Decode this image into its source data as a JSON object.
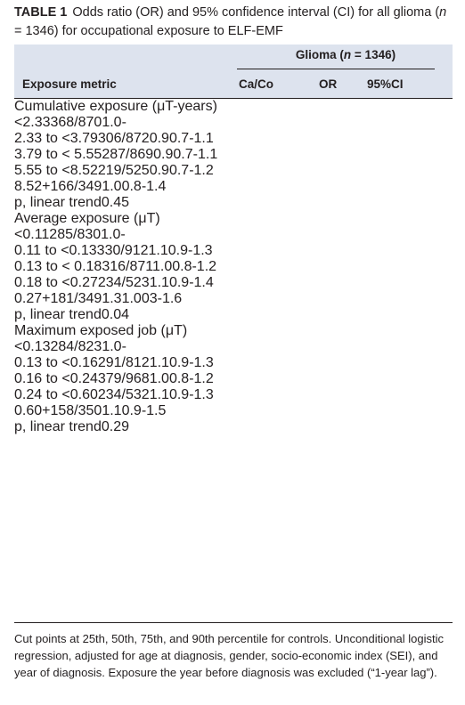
{
  "title": {
    "label": "TABLE 1",
    "segments": [
      {
        "text": "Odds ratio (OR) and 95% confidence interval (CI) for all glioma ("
      },
      {
        "text": "n",
        "italic": true
      },
      {
        "text": " = 1346) for occupational exposure to ELF-EMF"
      }
    ]
  },
  "table": {
    "group_header": [
      {
        "text": "Glioma ("
      },
      {
        "text": "n",
        "italic": true
      },
      {
        "text": " = 1346)"
      }
    ],
    "columns": [
      "Exposure metric",
      "Ca/Co",
      "OR",
      "95%CI"
    ],
    "sections": [
      {
        "title": "Cumulative exposure (μT-years)",
        "rows": [
          {
            "metric": "<2.33",
            "caco": "368/870",
            "or": "1.0",
            "ci": "-"
          },
          {
            "metric": "2.33 to <3.79",
            "caco": "306/872",
            "or": "0.9",
            "ci": "0.7-1.1"
          },
          {
            "metric": "3.79 to < 5.55",
            "caco": "287/869",
            "or": "0.9",
            "ci": "0.7-1.1"
          },
          {
            "metric": "5.55 to <8.52",
            "caco": "219/525",
            "or": "0.9",
            "ci": "0.7-1.2"
          },
          {
            "metric": "8.52+",
            "caco": "166/349",
            "or": "1.0",
            "ci": "0.8-1.4"
          },
          {
            "metric": "p, linear trend",
            "ci": "0.45"
          }
        ]
      },
      {
        "title": "Average exposure (μT)",
        "rows": [
          {
            "metric": "<0.11",
            "caco": "285/830",
            "or": "1.0",
            "ci": "-"
          },
          {
            "metric": "0.11 to <0.13",
            "caco": "330/912",
            "or": "1.1",
            "ci": "0.9-1.3"
          },
          {
            "metric": "0.13 to < 0.18",
            "caco": "316/871",
            "or": "1.0",
            "ci": "0.8-1.2"
          },
          {
            "metric": "0.18 to <0.27",
            "caco": "234/523",
            "or": "1.1",
            "ci": "0.9-1.4"
          },
          {
            "metric": "0.27+",
            "caco": "181/349",
            "or": "1.3",
            "ci": "1.003-1.6"
          },
          {
            "metric": "p, linear trend",
            "ci": "0.04"
          }
        ]
      },
      {
        "title": "Maximum exposed job (μT)",
        "rows": [
          {
            "metric": "<0.13",
            "caco": "284/823",
            "or": "1.0",
            "ci": "-"
          },
          {
            "metric": "0.13 to <0.16",
            "caco": "291/812",
            "or": "1.1",
            "ci": "0.9-1.3"
          },
          {
            "metric": "0.16 to <0.24",
            "caco": "379/968",
            "or": "1.0",
            "ci": "0.8-1.2"
          },
          {
            "metric": "0.24 to <0.60",
            "caco": "234/532",
            "or": "1.1",
            "ci": "0.9-1.3"
          },
          {
            "metric": "0.60+",
            "caco": "158/350",
            "or": "1.1",
            "ci": "0.9-1.5"
          },
          {
            "metric": "p, linear trend",
            "ci": "0.29"
          }
        ]
      }
    ]
  },
  "footnote": "Cut points at 25th, 50th, 75th, and 90th percentile for controls. Unconditional logistic regression, adjusted for age at diagnosis, gender, socio-economic index (SEI), and year of diagnosis. Exposure the year before diagnosis was excluded (“1-year lag”)."
}
